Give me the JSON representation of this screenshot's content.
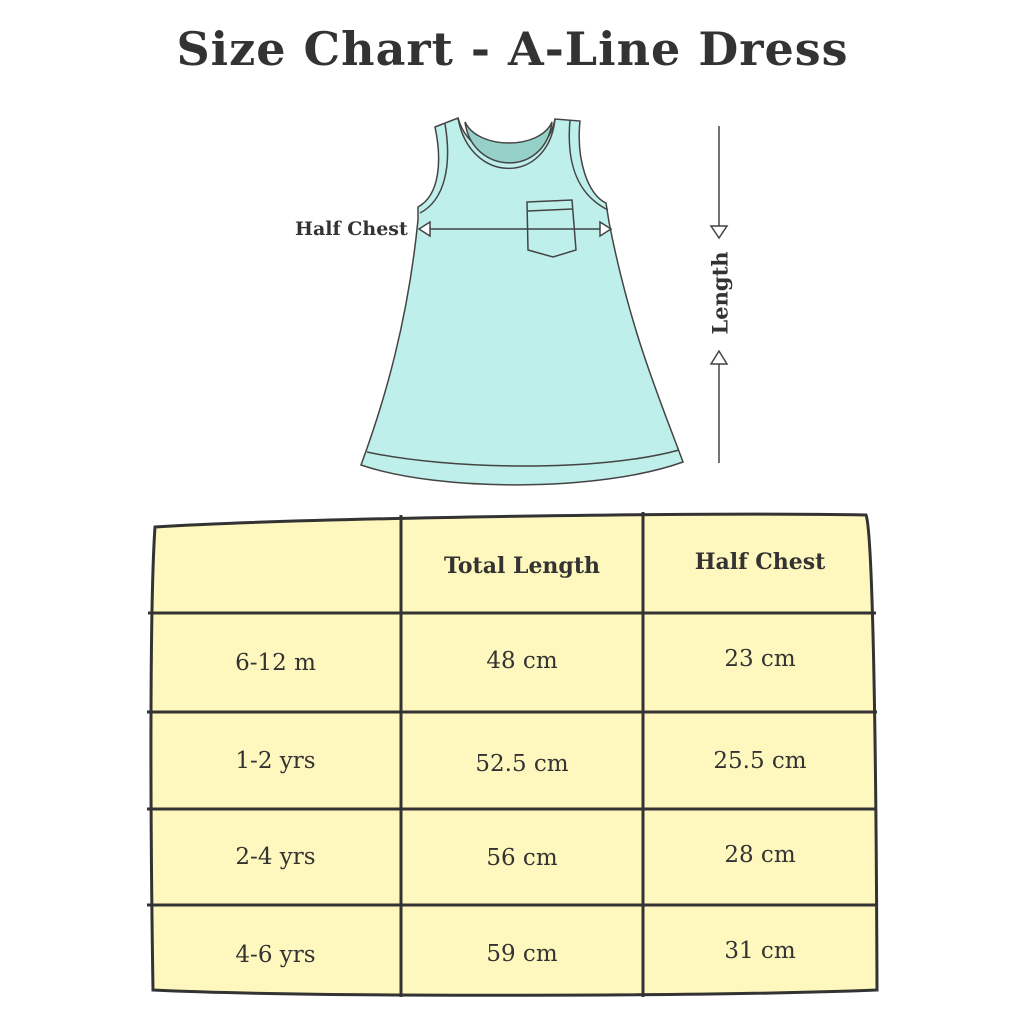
{
  "title": "Size Chart - A-Line Dress",
  "diagram": {
    "half_chest_label": "Half Chest",
    "length_label": "Length",
    "dress_color": "#bfefea",
    "neck_color": "#95d1c8"
  },
  "table": {
    "fill_color": "#fff8be",
    "headers": [
      "",
      "Total Length",
      "Half Chest"
    ],
    "rows": [
      [
        "6-12 m",
        "48 cm",
        "23 cm"
      ],
      [
        "1-2 yrs",
        "52.5 cm",
        "25.5 cm"
      ],
      [
        "2-4 yrs",
        "56 cm",
        "28 cm"
      ],
      [
        "4-6 yrs",
        "59 cm",
        "31 cm"
      ]
    ]
  }
}
